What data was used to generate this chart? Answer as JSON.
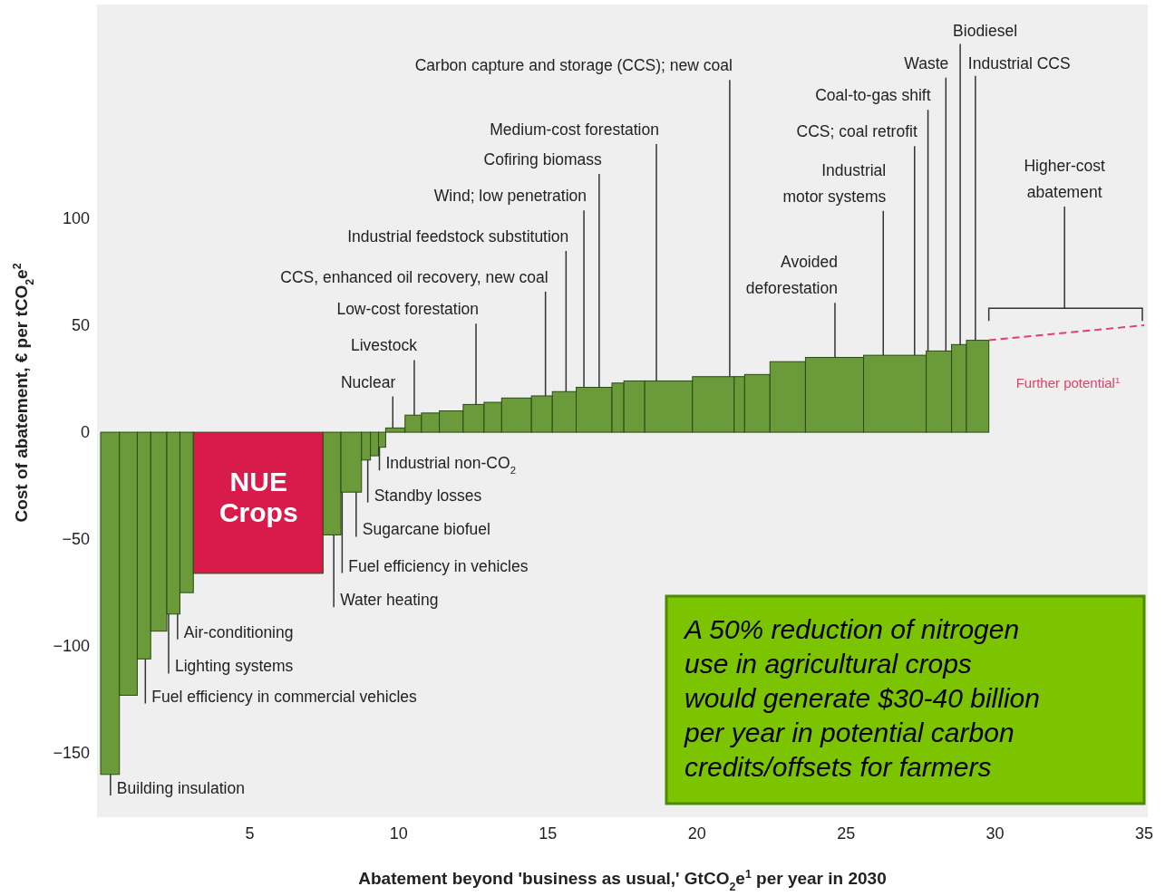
{
  "chart_data": {
    "type": "histogram",
    "xlabel": "Abatement beyond 'business as usual,' GtCO$_{2}$e$^{1}$ per year in 2030",
    "ylabel": "Cost of abatement, € per tCO$_{2}$e$^{2}$",
    "bins": [
      0,
      0.63,
      1.23,
      1.68,
      2.22,
      2.66,
      3.11,
      7.46,
      8.06,
      8.75,
      9.05,
      9.32,
      9.56,
      10.21,
      10.76,
      11.36,
      12.16,
      12.86,
      13.45,
      14.45,
      15.15,
      15.95,
      17.15,
      17.55,
      18.25,
      19.85,
      21.25,
      21.6,
      22.45,
      23.64,
      25.59,
      27.69,
      28.54,
      29.04,
      29.79
    ],
    "values": [
      -160,
      -123,
      -106,
      -93,
      -85,
      -75,
      -66,
      -48,
      -28,
      -13,
      -11,
      -7,
      2,
      8,
      9,
      10,
      13,
      14,
      16,
      17,
      19,
      21,
      23,
      24,
      24,
      26,
      26,
      27,
      33,
      35,
      36,
      38,
      41,
      43
    ],
    "colors": [
      "#6a9a3a",
      "#6a9a3a",
      "#6a9a3a",
      "#6a9a3a",
      "#6a9a3a",
      "#6a9a3a",
      "#d81b4a",
      "#6a9a3a",
      "#6a9a3a",
      "#6a9a3a",
      "#6a9a3a",
      "#6a9a3a",
      "#6a9a3a",
      "#6a9a3a",
      "#6a9a3a",
      "#6a9a3a",
      "#6a9a3a",
      "#6a9a3a",
      "#6a9a3a",
      "#6a9a3a",
      "#6a9a3a",
      "#6a9a3a",
      "#6a9a3a",
      "#6a9a3a",
      "#6a9a3a",
      "#6a9a3a",
      "#6a9a3a",
      "#6a9a3a",
      "#6a9a3a",
      "#6a9a3a",
      "#6a9a3a",
      "#6a9a3a",
      "#6a9a3a",
      "#6a9a3a"
    ],
    "series": [
      {
        "type": "line",
        "name": "Further potential$^{1}$",
        "x": [
          29.79,
          35
        ],
        "values": [
          43,
          50
        ],
        "color": "#e0406a",
        "line_style": "dashed"
      }
    ],
    "xlim": [
      0,
      35
    ],
    "xticks": [
      5,
      10,
      15,
      20,
      25,
      30,
      35
    ],
    "ylim": [
      -180,
      200
    ],
    "yticks": [
      -150,
      -100,
      -50,
      0,
      50,
      100
    ],
    "grid": false,
    "annotations": [
      {
        "text": "Carbon capture and storage (CCS); new coal",
        "x": 21.1,
        "y": 26
      },
      {
        "text": "Biodiesel",
        "x": 28.83,
        "y": 41
      },
      {
        "text": "Waste",
        "x": 28.35,
        "y": 38
      },
      {
        "text": "Industrial CCS",
        "x": 29.34,
        "y": 43
      },
      {
        "text": "Coal-to-gas shift",
        "x": 27.75,
        "y": 38
      },
      {
        "text": "CCS; coal retrofit",
        "x": 27.3,
        "y": 36
      },
      {
        "text": "Industrial\nmotor systems",
        "x": 26.25,
        "y": 36
      },
      {
        "text": "Avoided\ndeforestation",
        "x": 24.63,
        "y": 35
      },
      {
        "text": "Medium-cost forestation",
        "x": 18.64,
        "y": 24
      },
      {
        "text": "Cofiring biomass",
        "x": 16.72,
        "y": 21
      },
      {
        "text": "Wind; low penetration",
        "x": 16.21,
        "y": 21
      },
      {
        "text": "Industrial feedstock substitution",
        "x": 15.61,
        "y": 19
      },
      {
        "text": "CCS, enhanced oil recovery, new coal",
        "x": 14.92,
        "y": 17
      },
      {
        "text": "Low-cost forestation",
        "x": 12.59,
        "y": 13
      },
      {
        "text": "Livestock",
        "x": 10.52,
        "y": 8
      },
      {
        "text": "Nuclear",
        "x": 9.8,
        "y": 2
      },
      "Higher-cost\nabatement",
      {
        "text": "Industrial non-CO$_{2}$",
        "x": 9.35,
        "y": -7
      },
      {
        "text": "Standby losses",
        "x": 8.96,
        "y": -13
      },
      {
        "text": "Sugarcane biofuel",
        "x": 8.57,
        "y": -28
      },
      {
        "text": "Fuel efficiency in vehicles",
        "x": 8.1,
        "y": -28
      },
      {
        "text": "Water heating",
        "x": 7.82,
        "y": -48
      },
      {
        "text": "Air-conditioning",
        "x": 2.58,
        "y": -85
      },
      {
        "text": "Lighting systems",
        "x": 2.28,
        "y": -85
      },
      {
        "text": "Fuel efficiency in commercial vehicles",
        "x": 1.5,
        "y": -106
      },
      {
        "text": "Building insulation",
        "x": 0.33,
        "y": -160
      },
      "NUE\nCrops",
      "A 50% reduction of nitrogen\nuse in agricultural crops\nwould generate $30-40 billion\nper year in potential carbon\ncredits/offsets for farmers"
    ]
  }
}
